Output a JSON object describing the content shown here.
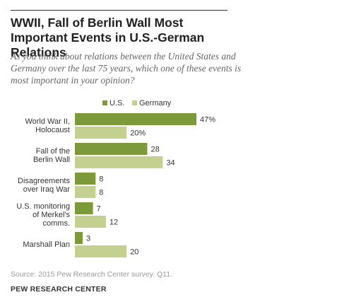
{
  "header": {
    "title": "WWII, Fall of Berlin Wall Most Important Events in U.S.-German Relations",
    "subtitle": "As you think about relations between the United States and Germany over the last 75 years, which one of these events is most important in your opinion?"
  },
  "footer": {
    "source": "Source: 2015 Pew Research Center survey. Q11.",
    "org": "PEW RESEARCH CENTER"
  },
  "colors": {
    "us": "#7d9a3a",
    "germany": "#c3d08f"
  },
  "chart_data": {
    "type": "bar",
    "orientation": "horizontal",
    "title": "WWII, Fall of Berlin Wall Most Important Events in U.S.-German Relations",
    "xlabel": "",
    "ylabel": "",
    "xlim": [
      0,
      47
    ],
    "grid": false,
    "legend_position": "top",
    "categories": [
      [
        "World War II,",
        "Holocaust"
      ],
      [
        "Fall of the",
        "Berlin Wall"
      ],
      [
        "Disagreements",
        "over Iraq War"
      ],
      [
        "U.S. monitoring",
        "of Merkel's",
        "comms."
      ],
      [
        "Marshall Plan"
      ]
    ],
    "series": [
      {
        "name": "U.S.",
        "values": [
          47,
          28,
          8,
          7,
          3
        ],
        "labels": [
          "47%",
          "28",
          "8",
          "7",
          "3"
        ]
      },
      {
        "name": "Germany",
        "values": [
          20,
          34,
          8,
          12,
          20
        ],
        "labels": [
          "20%",
          "34",
          "8",
          "12",
          "20"
        ]
      }
    ]
  }
}
